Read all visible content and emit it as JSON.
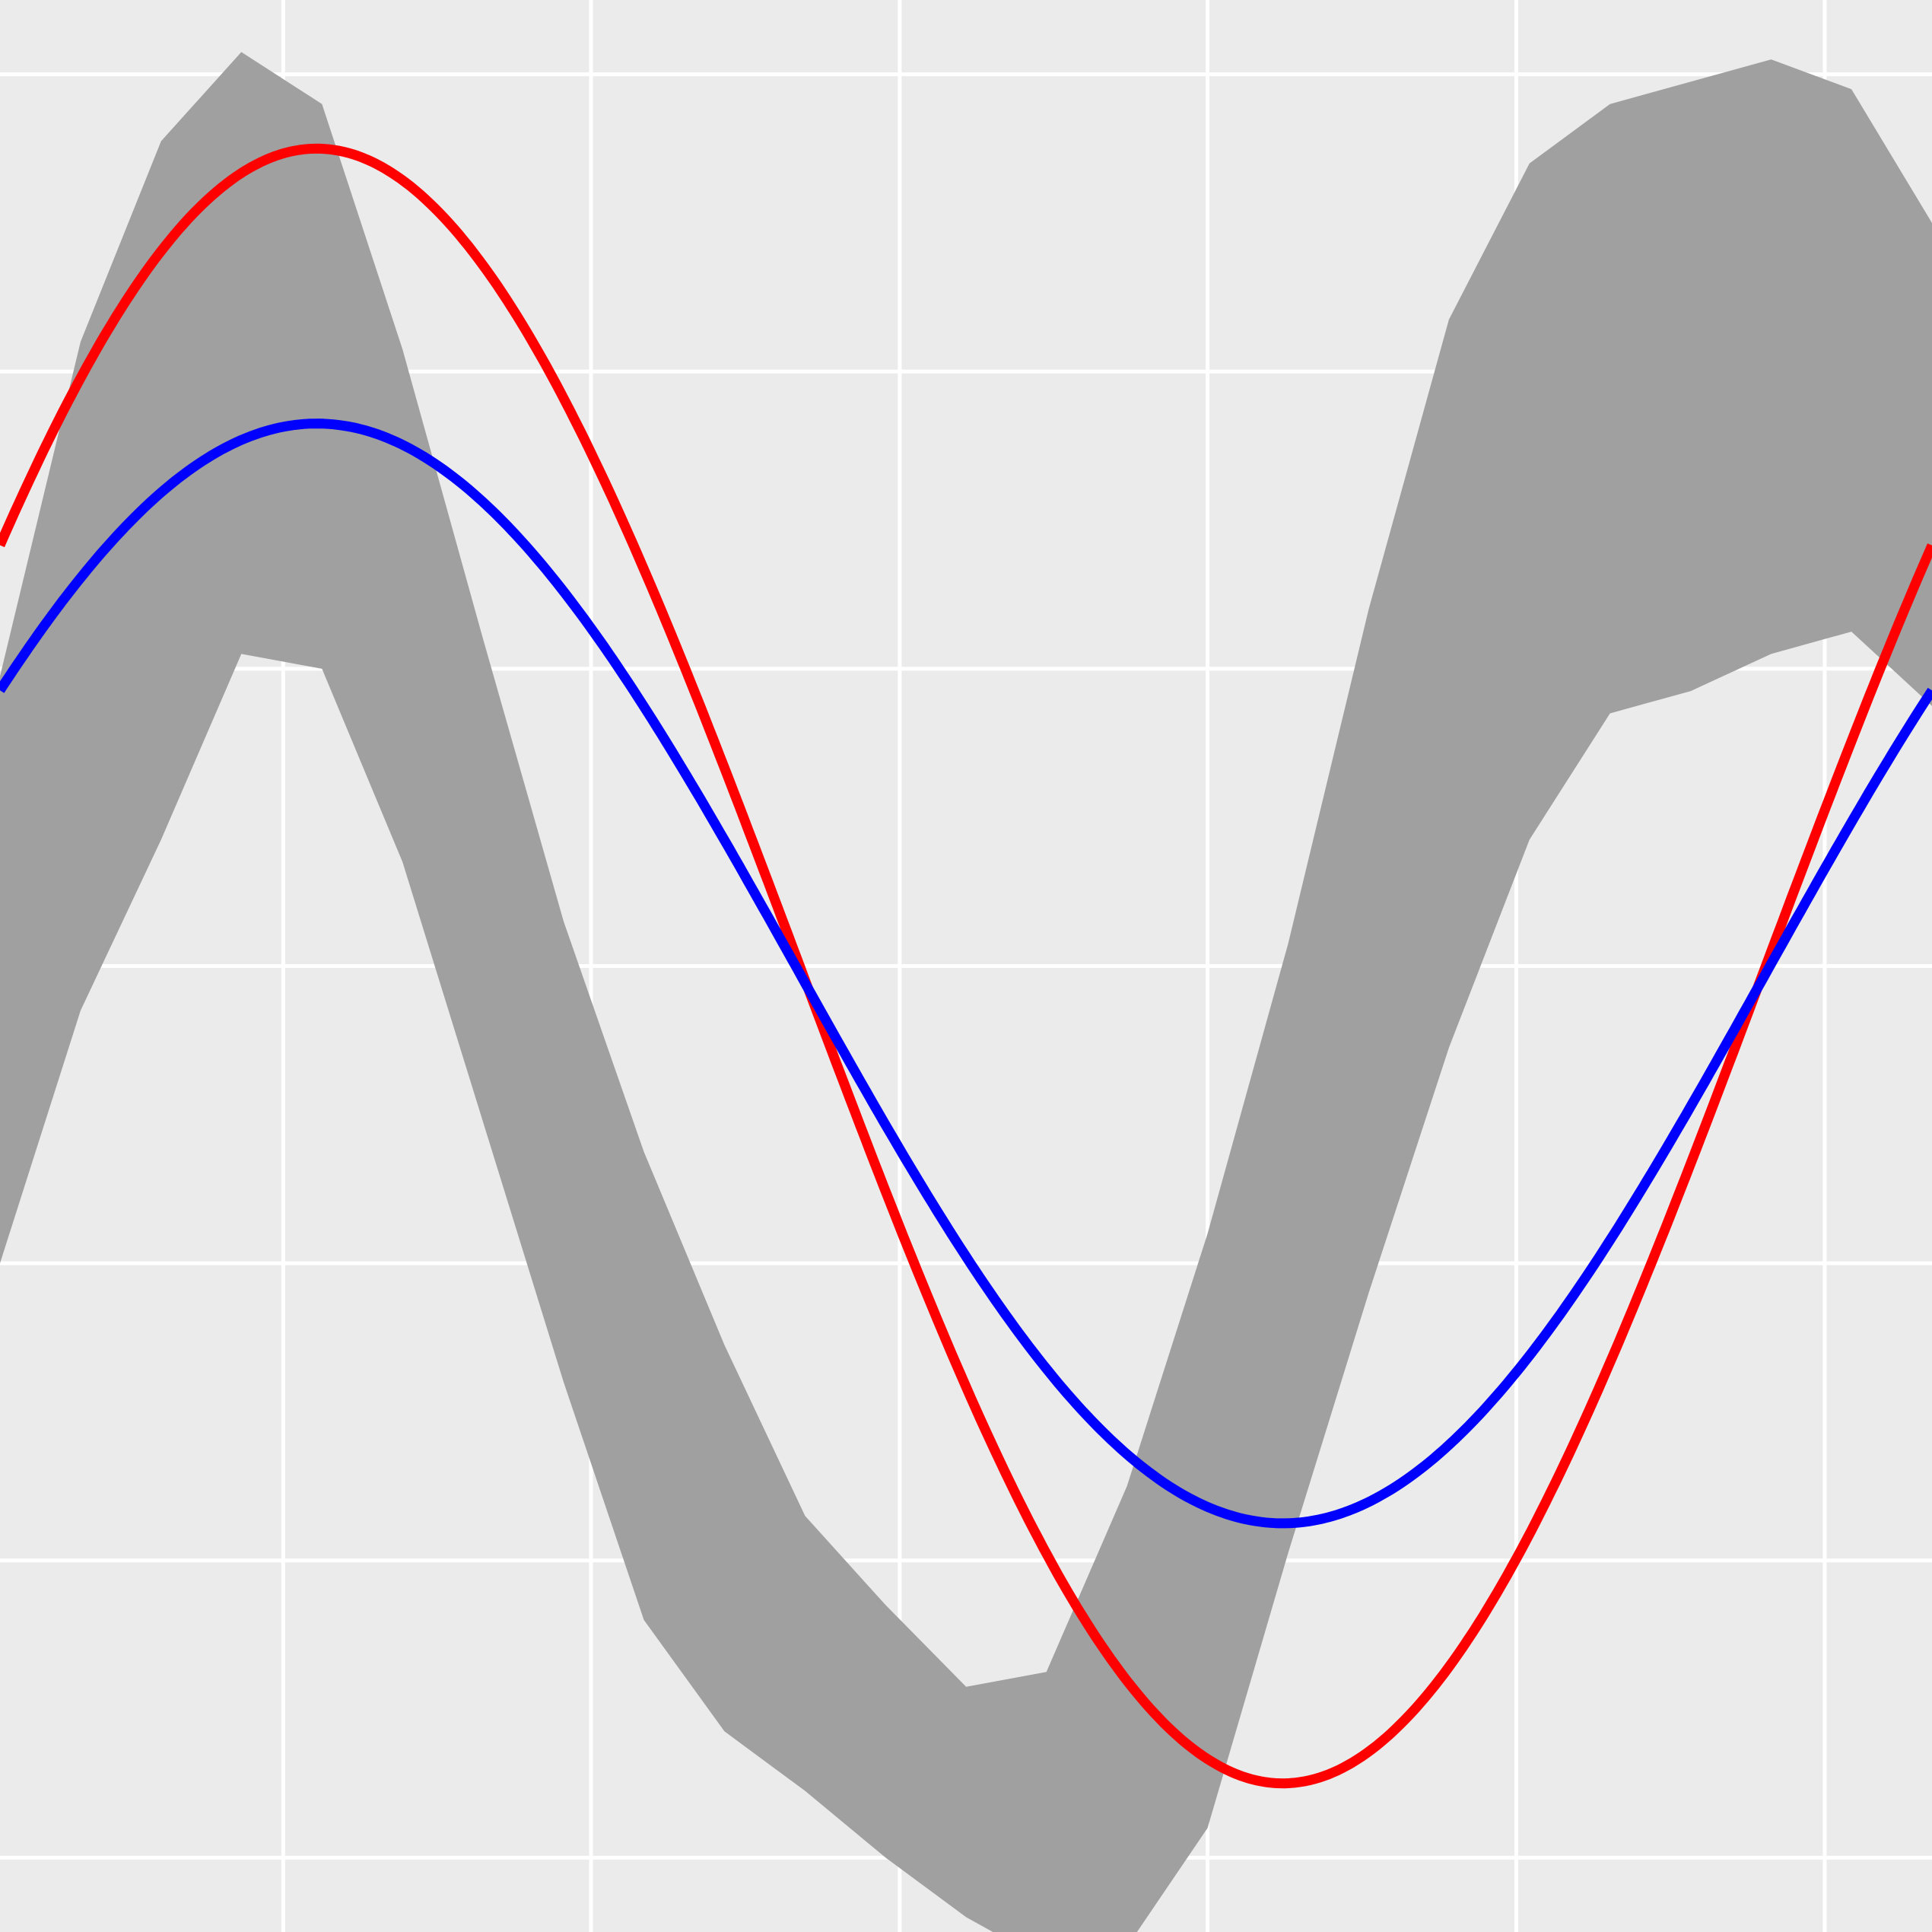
{
  "chart_data": {
    "type": "line",
    "title": "",
    "xlabel": "",
    "ylabel": "",
    "grid": true,
    "legend": "none",
    "xlim": [
      0,
      6.283
    ],
    "ylim": [
      -1.3,
      1.3
    ],
    "x_gridlines": [
      0.921,
      1.922,
      2.926,
      3.927,
      4.931,
      5.934
    ],
    "y_gridlines": [
      1.2,
      0.8,
      0.4,
      0.0,
      -0.4,
      -0.8,
      -1.2
    ],
    "colors": {
      "background": "#ebebeb",
      "grid": "#ffffff",
      "band": "#a0a0a0",
      "red": "#ff0000",
      "blue": "#0000ff"
    },
    "band": {
      "x": [
        0.0,
        0.262,
        0.524,
        0.785,
        1.047,
        1.309,
        1.571,
        1.833,
        2.094,
        2.356,
        2.618,
        2.88,
        3.142,
        3.403,
        3.665,
        3.927,
        4.189,
        4.451,
        4.712,
        4.974,
        5.236,
        5.498,
        5.76,
        6.021,
        6.283
      ],
      "upper": [
        0.39,
        0.84,
        1.11,
        1.23,
        1.16,
        0.83,
        0.44,
        0.06,
        -0.25,
        -0.51,
        -0.74,
        -0.86,
        -0.97,
        -0.95,
        -0.7,
        -0.36,
        0.03,
        0.48,
        0.87,
        1.08,
        1.16,
        1.19,
        1.22,
        1.18,
        1.0
      ],
      "lower": [
        -0.4,
        -0.06,
        0.17,
        0.42,
        0.4,
        0.14,
        -0.21,
        -0.56,
        -0.88,
        -1.03,
        -1.11,
        -1.2,
        -1.28,
        -1.34,
        -1.32,
        -1.16,
        -0.79,
        -0.44,
        -0.11,
        0.17,
        0.34,
        0.37,
        0.42,
        0.45,
        0.35
      ]
    },
    "series": [
      {
        "color": "#ff0000",
        "amplitude": 1.1,
        "peak_x": 1.03,
        "offset": 0.0
      },
      {
        "color": "#0000ff",
        "amplitude": 0.74,
        "peak_x": 1.03,
        "offset": -0.01
      }
    ]
  }
}
